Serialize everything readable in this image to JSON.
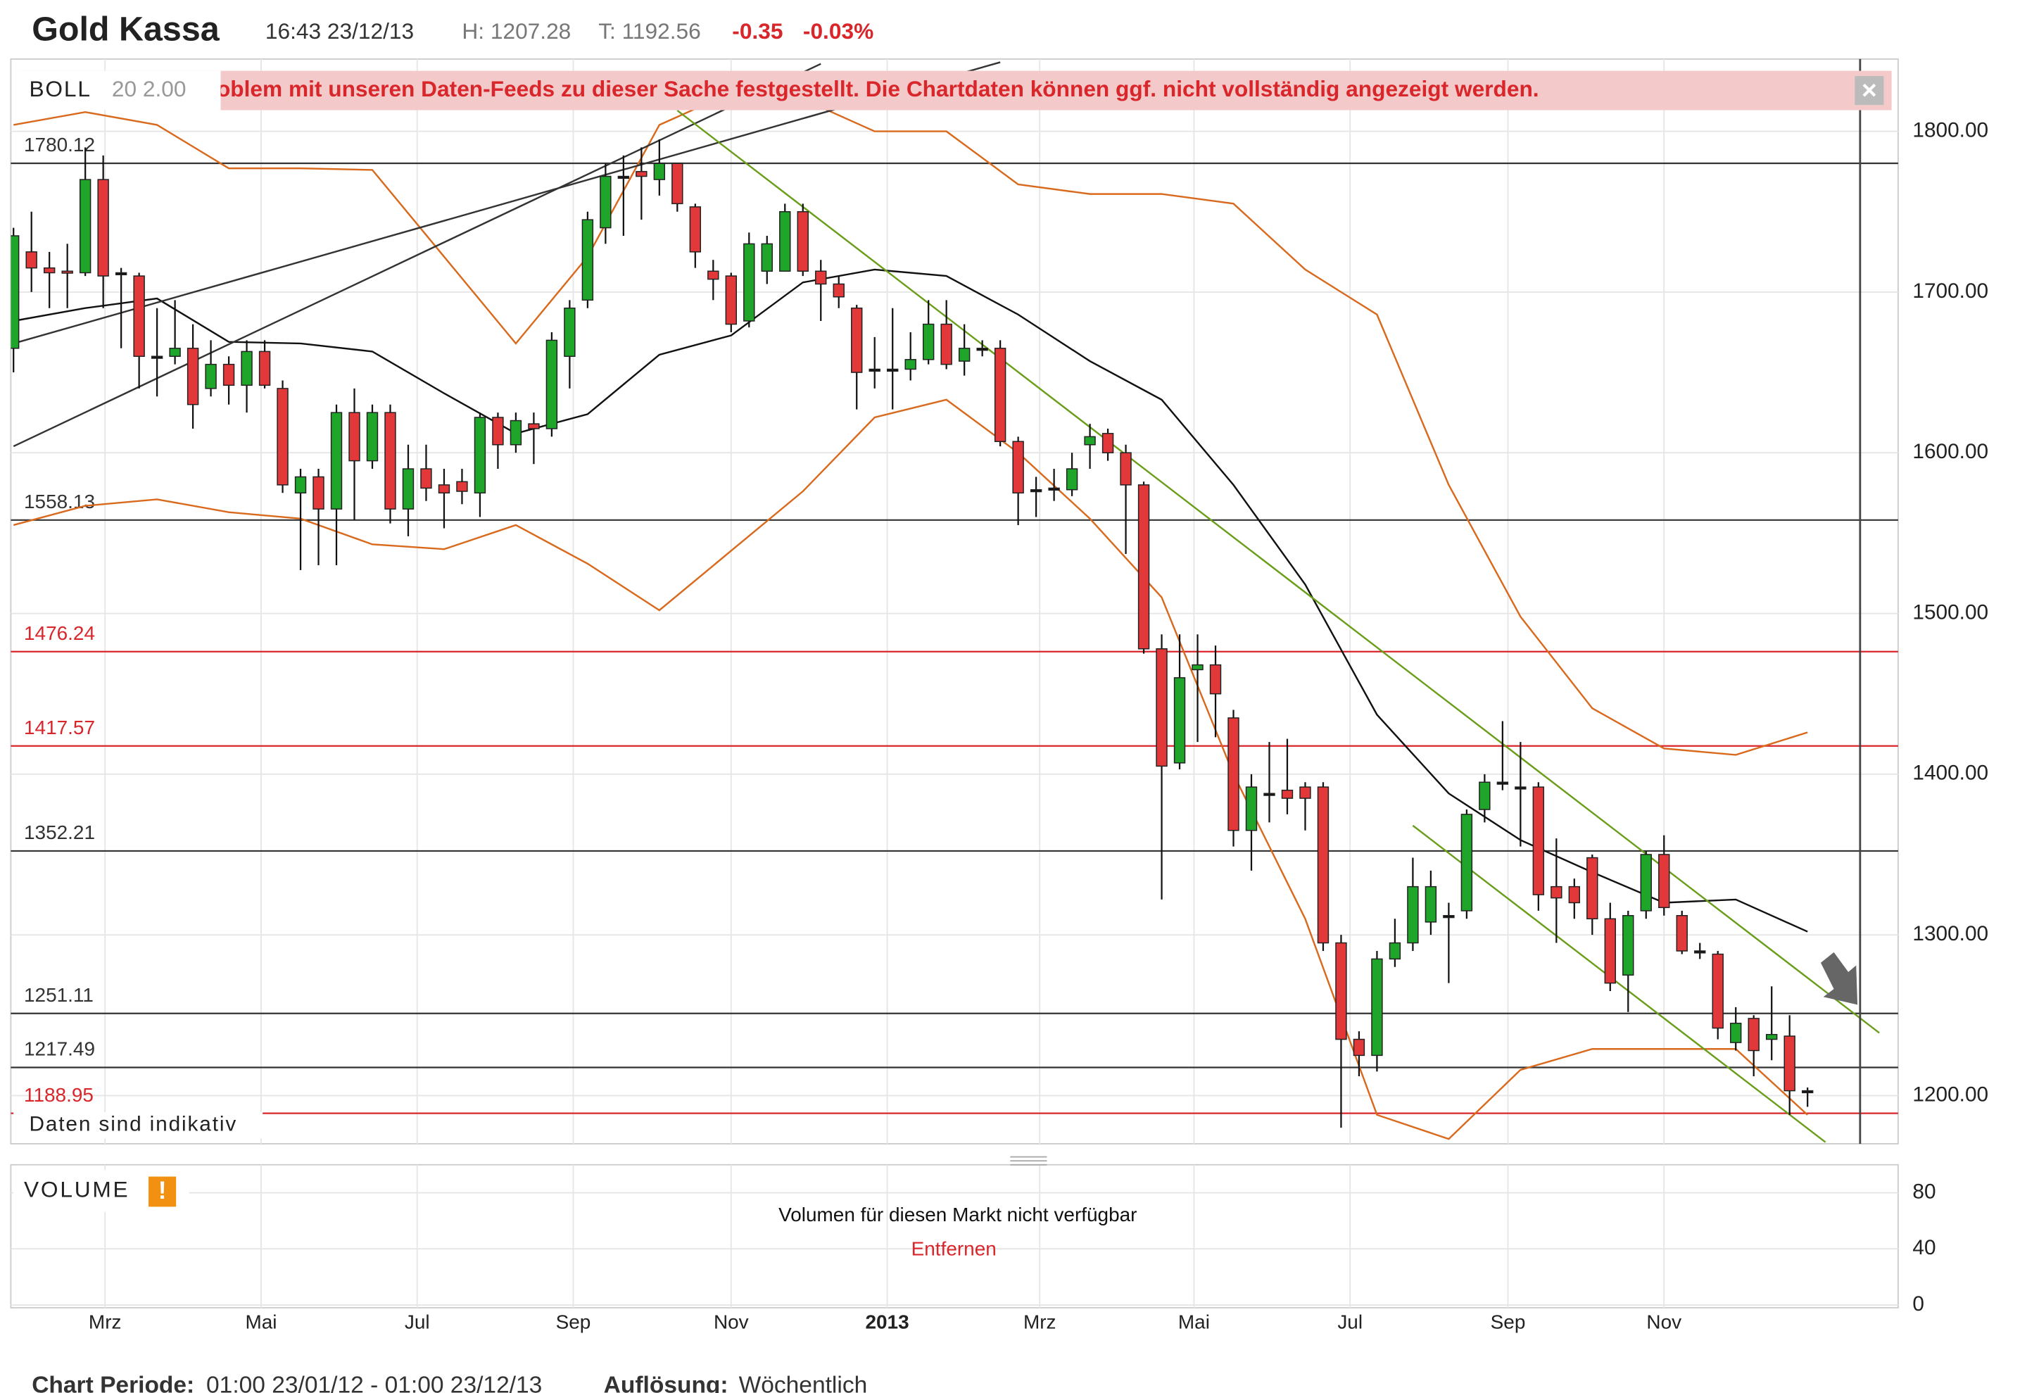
{
  "header": {
    "title": "Gold Kassa",
    "time": "16:43 23/12/13",
    "high": "H: 1207.28",
    "low": "T: 1192.56",
    "change": "-0.35",
    "change_pct": "-0.03%"
  },
  "banner": {
    "indicator": "BOLL",
    "params": "20 2.00",
    "message": "oblem mit unseren Daten-Feeds zu dieser Sache festgestellt. Die Chartdaten können ggf. nicht vollständig angezeigt werden."
  },
  "note": "Daten sind indikativ",
  "chart_data": {
    "type": "candlestick",
    "up_color": "#1fa52a",
    "down_color": "#e2383a",
    "xlim": [
      -0.15,
      105.05
    ],
    "ylim": [
      1170,
      1845
    ],
    "xticks": [
      {
        "value": 5.1,
        "label": "Mrz"
      },
      {
        "value": 13.8,
        "label": "Mai"
      },
      {
        "value": 22.5,
        "label": "Jul"
      },
      {
        "value": 31.2,
        "label": "Sep"
      },
      {
        "value": 40,
        "label": "Nov"
      },
      {
        "value": 48.7,
        "label": "2013"
      },
      {
        "value": 57.2,
        "label": "Mrz"
      },
      {
        "value": 65.8,
        "label": "Mai"
      },
      {
        "value": 74.5,
        "label": "Jul"
      },
      {
        "value": 83.3,
        "label": "Sep"
      },
      {
        "value": 92,
        "label": "Nov"
      }
    ],
    "yticks": [
      {
        "value": 1200,
        "label": "1200.00"
      },
      {
        "value": 1300,
        "label": "1300.00"
      },
      {
        "value": 1400,
        "label": "1400.00"
      },
      {
        "value": 1500,
        "label": "1500.00"
      },
      {
        "value": 1600,
        "label": "1600.00"
      },
      {
        "value": 1700,
        "label": "1700.00"
      },
      {
        "value": 1800,
        "label": "1800.00"
      }
    ],
    "open": [
      1665,
      1725,
      1715,
      1713,
      1712,
      1770,
      1712,
      1710,
      1660,
      1660,
      1665,
      1640,
      1655,
      1642,
      1663,
      1640,
      1575,
      1585,
      1565,
      1625,
      1595,
      1625,
      1565,
      1590,
      1580,
      1582,
      1575,
      1622,
      1605,
      1618,
      1615,
      1660,
      1695,
      1740,
      1772,
      1775,
      1770,
      1780,
      1753,
      1713,
      1710,
      1682,
      1713,
      1713,
      1750,
      1713,
      1705,
      1690,
      1652,
      1652,
      1652,
      1658,
      1680,
      1657,
      1665,
      1665,
      1607,
      1577,
      1578,
      1577,
      1605,
      1612,
      1600,
      1580,
      1478,
      1407,
      1465,
      1468,
      1435,
      1365,
      1388,
      1390,
      1392,
      1392,
      1295,
      1235,
      1225,
      1285,
      1295,
      1308,
      1312,
      1315,
      1378,
      1395,
      1392,
      1392,
      1330,
      1330,
      1348,
      1310,
      1275,
      1315,
      1350,
      1312,
      1290,
      1288,
      1233,
      1248,
      1235,
      1237,
      1203
    ],
    "high": [
      1740,
      1750,
      1725,
      1730,
      1790,
      1785,
      1715,
      1712,
      1690,
      1695,
      1680,
      1670,
      1660,
      1670,
      1670,
      1645,
      1590,
      1590,
      1630,
      1640,
      1630,
      1630,
      1605,
      1605,
      1590,
      1590,
      1625,
      1625,
      1625,
      1625,
      1675,
      1695,
      1750,
      1780,
      1785,
      1790,
      1795,
      1780,
      1755,
      1720,
      1712,
      1737,
      1735,
      1755,
      1755,
      1720,
      1710,
      1692,
      1672,
      1690,
      1675,
      1695,
      1695,
      1680,
      1670,
      1670,
      1610,
      1585,
      1590,
      1600,
      1618,
      1615,
      1605,
      1582,
      1487,
      1487,
      1487,
      1480,
      1440,
      1400,
      1420,
      1422,
      1395,
      1395,
      1300,
      1240,
      1290,
      1310,
      1348,
      1340,
      1320,
      1378,
      1400,
      1433,
      1420,
      1395,
      1360,
      1335,
      1350,
      1320,
      1315,
      1352,
      1362,
      1315,
      1295,
      1290,
      1255,
      1250,
      1268,
      1250,
      1205
    ],
    "low": [
      1650,
      1700,
      1690,
      1690,
      1710,
      1690,
      1665,
      1640,
      1635,
      1655,
      1615,
      1635,
      1630,
      1625,
      1640,
      1575,
      1527,
      1530,
      1530,
      1558,
      1590,
      1556,
      1548,
      1570,
      1553,
      1568,
      1560,
      1590,
      1600,
      1593,
      1610,
      1640,
      1690,
      1730,
      1735,
      1745,
      1760,
      1750,
      1715,
      1695,
      1675,
      1678,
      1705,
      1713,
      1710,
      1682,
      1690,
      1627,
      1640,
      1627,
      1645,
      1655,
      1652,
      1648,
      1660,
      1604,
      1555,
      1560,
      1570,
      1573,
      1590,
      1595,
      1537,
      1475,
      1322,
      1403,
      1420,
      1423,
      1355,
      1340,
      1370,
      1375,
      1365,
      1290,
      1180,
      1212,
      1215,
      1280,
      1290,
      1300,
      1270,
      1310,
      1370,
      1390,
      1355,
      1315,
      1295,
      1310,
      1300,
      1265,
      1252,
      1310,
      1312,
      1288,
      1285,
      1235,
      1228,
      1212,
      1222,
      1188,
      1193
    ],
    "close": [
      1735,
      1715,
      1712,
      1712,
      1770,
      1710,
      1712,
      1660,
      1660,
      1665,
      1630,
      1655,
      1642,
      1663,
      1642,
      1580,
      1585,
      1565,
      1625,
      1595,
      1625,
      1565,
      1590,
      1578,
      1575,
      1576,
      1622,
      1605,
      1620,
      1615,
      1670,
      1690,
      1745,
      1772,
      1772,
      1772,
      1780,
      1755,
      1725,
      1708,
      1680,
      1730,
      1730,
      1750,
      1713,
      1705,
      1697,
      1650,
      1652,
      1652,
      1658,
      1680,
      1655,
      1665,
      1665,
      1607,
      1575,
      1577,
      1578,
      1590,
      1610,
      1600,
      1580,
      1478,
      1405,
      1460,
      1468,
      1450,
      1365,
      1392,
      1388,
      1385,
      1385,
      1295,
      1235,
      1225,
      1285,
      1295,
      1330,
      1330,
      1312,
      1375,
      1395,
      1395,
      1392,
      1325,
      1323,
      1320,
      1310,
      1270,
      1312,
      1350,
      1317,
      1290,
      1290,
      1242,
      1245,
      1228,
      1238,
      1203,
      1203
    ],
    "bands": [
      {
        "color": "#d9691c",
        "x": [
          0,
          4,
          8,
          12,
          16,
          20,
          24,
          28,
          32,
          36,
          40,
          44,
          48,
          52,
          56,
          60,
          64,
          68,
          72,
          76,
          80,
          84,
          88,
          92,
          96,
          100
        ],
        "values": [
          1804,
          1812,
          1804,
          1777,
          1777,
          1776,
          1722,
          1668,
          1722,
          1804,
          1824,
          1820,
          1800,
          1800,
          1767,
          1761,
          1761,
          1755,
          1714,
          1686,
          1580,
          1498,
          1441,
          1416,
          1412,
          1426
        ]
      },
      {
        "color": "#111111",
        "x": [
          0,
          4,
          8,
          12,
          16,
          20,
          24,
          28,
          32,
          36,
          40,
          44,
          48,
          52,
          56,
          60,
          64,
          68,
          72,
          76,
          80,
          84,
          88,
          92,
          96,
          100
        ],
        "values": [
          1682,
          1690,
          1696,
          1669,
          1668,
          1663,
          1637,
          1612,
          1624,
          1661,
          1673,
          1706,
          1714,
          1710,
          1686,
          1657,
          1633,
          1580,
          1518,
          1437,
          1388,
          1359,
          1339,
          1320,
          1322,
          1302
        ]
      },
      {
        "color": "#d9691c",
        "x": [
          0,
          4,
          8,
          12,
          16,
          20,
          24,
          28,
          32,
          36,
          40,
          44,
          48,
          52,
          56,
          60,
          64,
          68,
          72,
          76,
          80,
          84,
          88,
          92,
          96,
          100
        ],
        "values": [
          1555,
          1567,
          1571,
          1563,
          1559,
          1543,
          1540,
          1555,
          1531,
          1502,
          1539,
          1576,
          1622,
          1633,
          1600,
          1559,
          1510,
          1400,
          1310,
          1188,
          1173,
          1216,
          1229,
          1229,
          1229,
          1188
        ]
      }
    ],
    "trendlines": [
      {
        "color": "#333333",
        "x": [
          0,
          55
        ],
        "values": [
          1668,
          1843
        ]
      },
      {
        "color": "#333333",
        "x": [
          0,
          45
        ],
        "values": [
          1604,
          1842
        ]
      },
      {
        "color": "#6a9e1a",
        "x": [
          37,
          104
        ],
        "values": [
          1813,
          1239
        ]
      },
      {
        "color": "#6a9e1a",
        "x": [
          78,
          101
        ],
        "values": [
          1368,
          1171
        ]
      }
    ],
    "levels": [
      {
        "value": 1780.12,
        "color": "#333333"
      },
      {
        "value": 1558.13,
        "color": "#333333"
      },
      {
        "value": 1476.24,
        "color": "#d8262b"
      },
      {
        "value": 1417.57,
        "color": "#d8262b"
      },
      {
        "value": 1352.21,
        "color": "#333333"
      },
      {
        "value": 1251.11,
        "color": "#333333"
      },
      {
        "value": 1217.49,
        "color": "#333333"
      },
      {
        "value": 1188.95,
        "color": "#d8262b"
      }
    ]
  },
  "volume": {
    "title": "VOLUME",
    "message": "Volumen für diesen Markt nicht verfügbar",
    "action": "Entfernen",
    "ylim": [
      -2,
      100
    ],
    "yticks": [
      0,
      40,
      80
    ]
  },
  "footer": {
    "period_label": "Chart Periode:",
    "period": "01:00 23/01/12 - 01:00 23/12/13",
    "resolution_label": "Auflösung:",
    "resolution": "Wöchentlich"
  }
}
